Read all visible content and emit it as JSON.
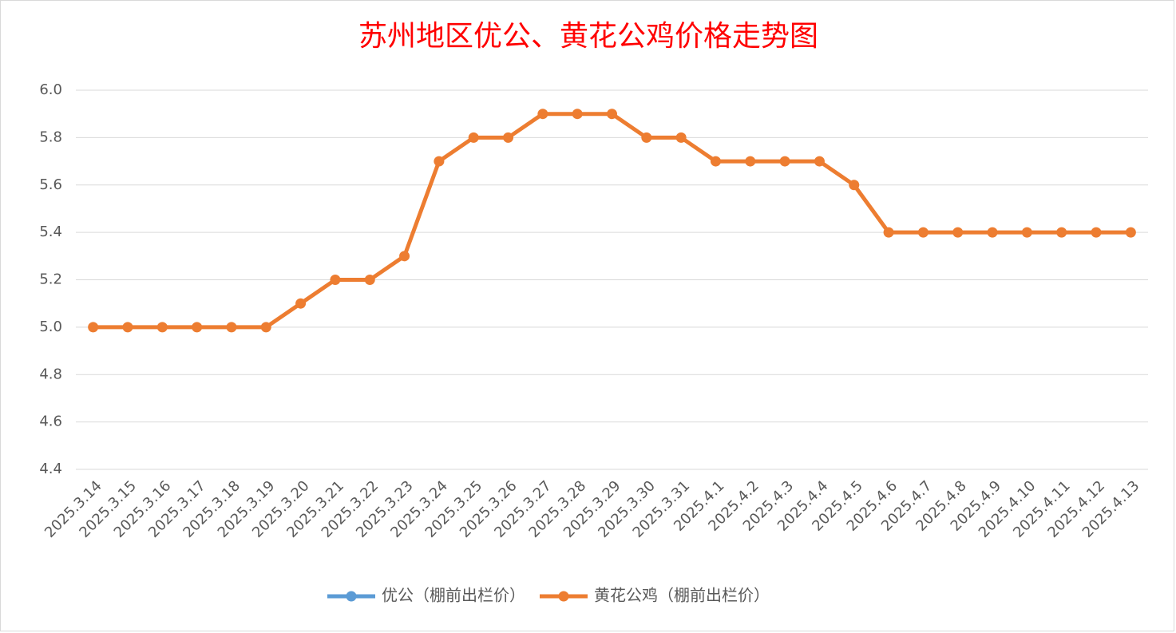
{
  "chart_data": {
    "type": "line",
    "title": "苏州地区优公、黄花公鸡价格走势图",
    "categories": [
      "2025.3.14",
      "2025.3.15",
      "2025.3.16",
      "2025.3.17",
      "2025.3.18",
      "2025.3.19",
      "2025.3.20",
      "2025.3.21",
      "2025.3.22",
      "2025.3.23",
      "2025.3.24",
      "2025.3.25",
      "2025.3.26",
      "2025.3.27",
      "2025.3.28",
      "2025.3.29",
      "2025.3.30",
      "2025.3.31",
      "2025.4.1",
      "2025.4.2",
      "2025.4.3",
      "2025.4.4",
      "2025.4.5",
      "2025.4.6",
      "2025.4.7",
      "2025.4.8",
      "2025.4.9",
      "2025.4.10",
      "2025.4.11",
      "2025.4.12",
      "2025.4.13"
    ],
    "series": [
      {
        "name": "优公（棚前出栏价）",
        "color": "#5b9bd5",
        "values": [
          null,
          null,
          null,
          null,
          null,
          null,
          null,
          null,
          null,
          null,
          null,
          null,
          null,
          null,
          null,
          null,
          null,
          null,
          null,
          null,
          null,
          null,
          null,
          null,
          null,
          null,
          null,
          null,
          null,
          null,
          null
        ]
      },
      {
        "name": "黄花公鸡（棚前出栏价）",
        "color": "#ed7d31",
        "values": [
          5.0,
          5.0,
          5.0,
          5.0,
          5.0,
          5.0,
          5.1,
          5.2,
          5.2,
          5.3,
          5.7,
          5.8,
          5.8,
          5.9,
          5.9,
          5.9,
          5.8,
          5.8,
          5.7,
          5.7,
          5.7,
          5.7,
          5.6,
          5.4,
          5.4,
          5.4,
          5.4,
          5.4,
          5.4,
          5.4,
          5.4
        ]
      }
    ],
    "ylim": [
      4.4,
      6.0
    ],
    "yticks": [
      4.4,
      4.6,
      4.8,
      {
        "value": 5.0,
        "label": "5.0"
      },
      5.2,
      5.4,
      5.6,
      5.8,
      {
        "value": 6.0,
        "label": "6.0"
      }
    ],
    "grid": true,
    "legend": "bottom"
  }
}
